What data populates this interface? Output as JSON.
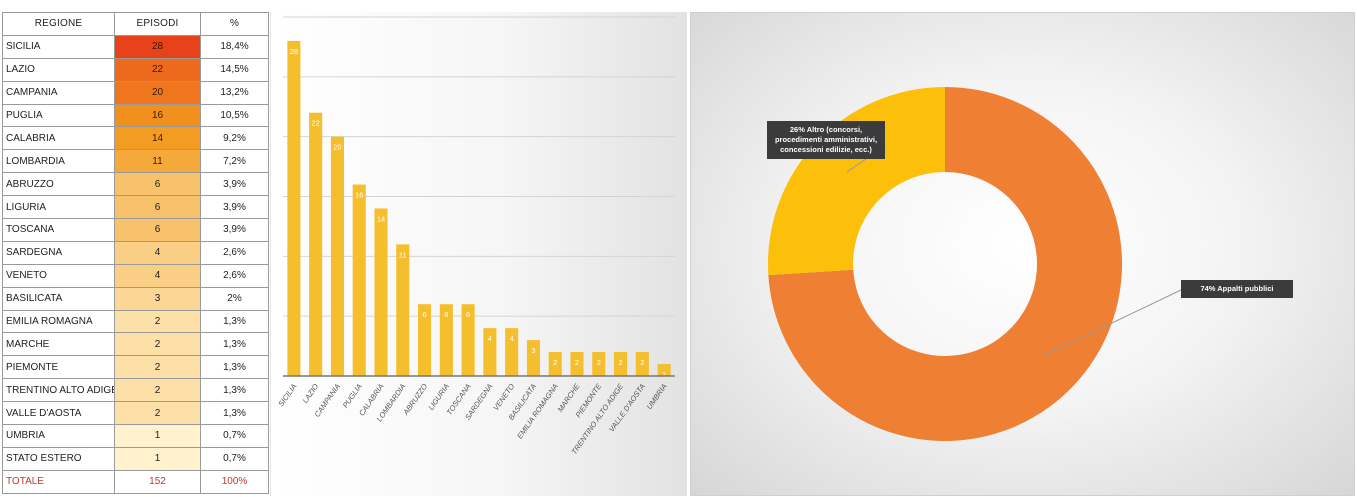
{
  "table": {
    "headers": [
      "REGIONE",
      "EPISODI",
      "%"
    ],
    "rows": [
      {
        "regione": "SICILIA",
        "episodi": "28",
        "pct": "18,4%"
      },
      {
        "regione": "LAZIO",
        "episodi": "22",
        "pct": "14,5%"
      },
      {
        "regione": "CAMPANIA",
        "episodi": "20",
        "pct": "13,2%"
      },
      {
        "regione": "PUGLIA",
        "episodi": "16",
        "pct": "10,5%"
      },
      {
        "regione": "CALABRIA",
        "episodi": "14",
        "pct": "9,2%"
      },
      {
        "regione": "LOMBARDIA",
        "episodi": "11",
        "pct": "7,2%"
      },
      {
        "regione": "ABRUZZO",
        "episodi": "6",
        "pct": "3,9%"
      },
      {
        "regione": "LIGURIA",
        "episodi": "6",
        "pct": "3,9%"
      },
      {
        "regione": "TOSCANA",
        "episodi": "6",
        "pct": "3,9%"
      },
      {
        "regione": "SARDEGNA",
        "episodi": "4",
        "pct": "2,6%"
      },
      {
        "regione": "VENETO",
        "episodi": "4",
        "pct": "2,6%"
      },
      {
        "regione": "BASILICATA",
        "episodi": "3",
        "pct": "2%"
      },
      {
        "regione": "EMILIA ROMAGNA",
        "episodi": "2",
        "pct": "1,3%"
      },
      {
        "regione": "MARCHE",
        "episodi": "2",
        "pct": "1,3%"
      },
      {
        "regione": "PIEMONTE",
        "episodi": "2",
        "pct": "1,3%"
      },
      {
        "regione": "TRENTINO ALTO ADIGE",
        "episodi": "2",
        "pct": "1,3%"
      },
      {
        "regione": "VALLE D'AOSTA",
        "episodi": "2",
        "pct": "1,3%"
      },
      {
        "regione": "UMBRIA",
        "episodi": "1",
        "pct": "0,7%"
      },
      {
        "regione": "STATO ESTERO",
        "episodi": "1",
        "pct": "0,7%"
      }
    ],
    "total": {
      "regione": "TOTALE",
      "episodi": "152",
      "pct": "100%"
    },
    "heat_colors": {
      "max": "#e8421a",
      "mid": "#f39a1e",
      "min": "#fff2cc"
    }
  },
  "chart_data": [
    {
      "type": "bar",
      "categories": [
        "SICILIA",
        "LAZIO",
        "CAMPANIA",
        "PUGLIA",
        "CALABRIA",
        "LOMBARDIA",
        "ABRUZZO",
        "LIGURIA",
        "TOSCANA",
        "SARDEGNA",
        "VENETO",
        "BASILICATA",
        "EMILIA ROMAGNA",
        "MARCHE",
        "PIEMONTE",
        "TRENTINO ALTO ADIGE",
        "VALLE D'AOSTA",
        "UMBRIA"
      ],
      "values": [
        28,
        22,
        20,
        16,
        14,
        11,
        6,
        6,
        6,
        4,
        4,
        3,
        2,
        2,
        2,
        2,
        2,
        1
      ],
      "ylim": [
        0,
        30
      ],
      "grid": true,
      "bar_color": "#f5be2c",
      "label_color": "#ffffff"
    },
    {
      "type": "pie",
      "donut": true,
      "slices": [
        {
          "label": "74% Appalti pubblici",
          "value": 74,
          "color": "#ee7f33"
        },
        {
          "label": "26% Altro (concorsi, procedimenti amministrativi, concessioni edilizie, ecc.)",
          "value": 26,
          "color": "#fcbf0a"
        }
      ]
    }
  ]
}
